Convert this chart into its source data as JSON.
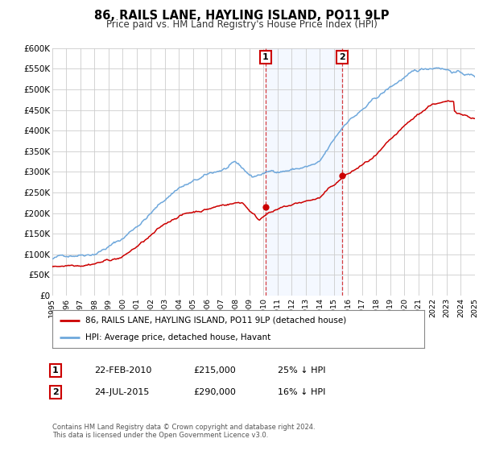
{
  "title": "86, RAILS LANE, HAYLING ISLAND, PO11 9LP",
  "subtitle": "Price paid vs. HM Land Registry's House Price Index (HPI)",
  "xlim": [
    1995,
    2025
  ],
  "ylim": [
    0,
    600000
  ],
  "yticks": [
    0,
    50000,
    100000,
    150000,
    200000,
    250000,
    300000,
    350000,
    400000,
    450000,
    500000,
    550000,
    600000
  ],
  "ytick_labels": [
    "£0",
    "£50K",
    "£100K",
    "£150K",
    "£200K",
    "£250K",
    "£300K",
    "£350K",
    "£400K",
    "£450K",
    "£500K",
    "£550K",
    "£600K"
  ],
  "hpi_color": "#6fa8dc",
  "price_color": "#cc0000",
  "sale1_x": 2010.13,
  "sale1_y": 215000,
  "sale2_x": 2015.56,
  "sale2_y": 290000,
  "vline1_x": 2010.13,
  "vline2_x": 2015.56,
  "shade_start": 2010.13,
  "shade_end": 2015.56,
  "legend_line1": "86, RAILS LANE, HAYLING ISLAND, PO11 9LP (detached house)",
  "legend_line2": "HPI: Average price, detached house, Havant",
  "footnote1": "Contains HM Land Registry data © Crown copyright and database right 2024.",
  "footnote2": "This data is licensed under the Open Government Licence v3.0.",
  "annotation1_num": "1",
  "annotation1_date": "22-FEB-2010",
  "annotation1_price": "£215,000",
  "annotation1_hpi": "25% ↓ HPI",
  "annotation2_num": "2",
  "annotation2_date": "24-JUL-2015",
  "annotation2_price": "£290,000",
  "annotation2_hpi": "16% ↓ HPI",
  "background_color": "#ffffff",
  "grid_color": "#cccccc"
}
